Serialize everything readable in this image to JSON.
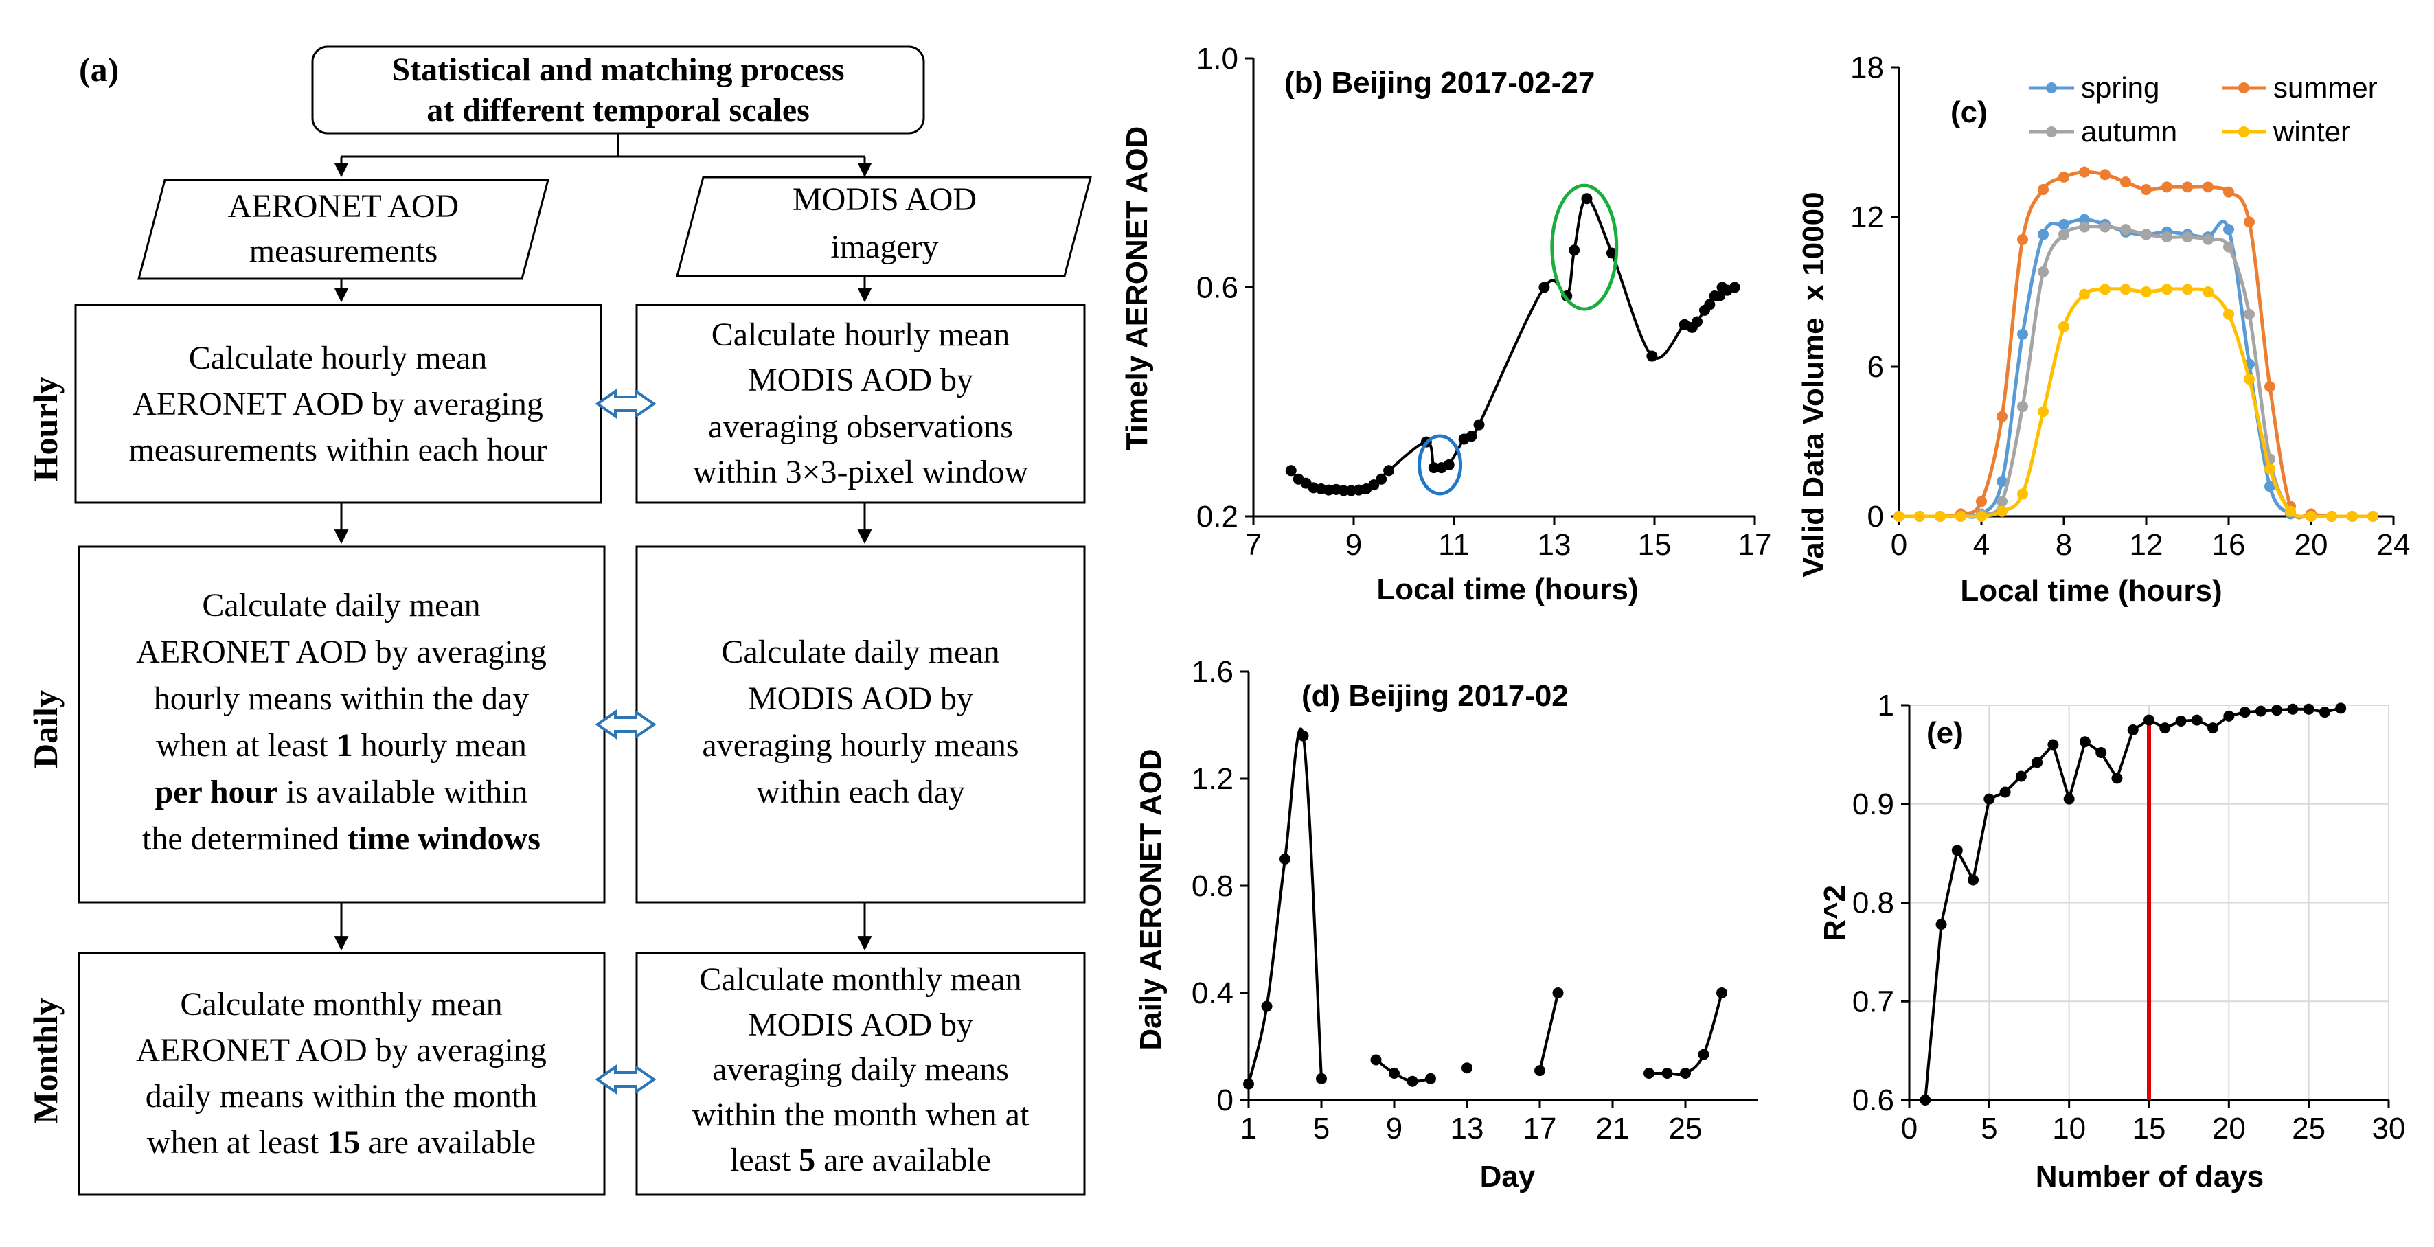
{
  "colors": {
    "black": "#000000",
    "spring": "#5B9BD5",
    "summer": "#ED7D31",
    "autumn": "#A5A5A5",
    "winter": "#FFC000",
    "ring_blue": "#1F78C8",
    "ring_green": "#1AAE3F",
    "marker_red": "#E00000",
    "arrow_blue": "#2E75B6",
    "grid": "#D9D9D9"
  },
  "flowchart": {
    "panel_label": "(a)",
    "top_box": {
      "line1": "Statistical and matching process",
      "line2": "at different temporal scales"
    },
    "left_input": {
      "line1": "AERONET AOD",
      "line2": "measurements"
    },
    "right_input": {
      "line1": "MODIS AOD",
      "line2": "imagery"
    },
    "row_labels": {
      "hourly": "Hourly",
      "daily": "Daily",
      "monthly": "Monthly"
    },
    "hourly_left": [
      "Calculate hourly mean",
      "AERONET AOD by averaging",
      "measurements within each hour"
    ],
    "hourly_right": [
      "Calculate hourly mean",
      "MODIS AOD by",
      "averaging observations",
      "within 3×3-pixel window"
    ],
    "daily_left": {
      "l1": "Calculate daily mean",
      "l2": "AERONET AOD by averaging",
      "l3": "hourly means within the day",
      "l4a": "when at least ",
      "l4b": "1",
      "l4c": " hourly mean",
      "l5a": "per hour",
      "l5b": " is available within",
      "l6a": "the determined ",
      "l6b": "time windows"
    },
    "daily_right": [
      "Calculate daily mean",
      "MODIS AOD by",
      "averaging hourly means",
      "within each day"
    ],
    "monthly_left": {
      "l1": "Calculate monthly mean",
      "l2": "AERONET AOD by averaging",
      "l3": "daily means within the month",
      "l4a": "when at least ",
      "l4b": "15",
      "l4c": " are available"
    },
    "monthly_right": {
      "l1": "Calculate monthly mean",
      "l2": "MODIS AOD by",
      "l3": "averaging daily means",
      "l4": "within the month when at",
      "l5a": "least ",
      "l5b": "5",
      "l5c": " are available"
    }
  },
  "chart_data": [
    {
      "id": "b",
      "type": "line",
      "title": "(b) Beijing  2017-02-27",
      "xlabel": "Local time (hours)",
      "ylabel": "Timely AERONET AOD",
      "xlim": [
        7,
        17
      ],
      "ylim": [
        0.2,
        1.0
      ],
      "xticks": [
        7,
        9,
        11,
        13,
        15,
        17
      ],
      "yticks": [
        0.2,
        0.6,
        1.0
      ],
      "ytick_labels": [
        "0.2",
        "0.6",
        "1.0"
      ],
      "grid": false,
      "x": [
        7.75,
        7.9,
        8.05,
        8.2,
        8.35,
        8.5,
        8.65,
        8.8,
        8.95,
        9.1,
        9.25,
        9.4,
        9.55,
        9.7,
        10.45,
        10.6,
        10.75,
        10.9,
        11.2,
        11.35,
        11.5,
        12.8,
        13.25,
        13.4,
        13.65,
        14.15,
        14.95,
        15.6,
        15.75,
        15.85,
        16.0,
        16.1,
        16.2,
        16.3,
        16.35,
        16.45,
        16.6
      ],
      "values": [
        0.28,
        0.265,
        0.258,
        0.25,
        0.248,
        0.246,
        0.247,
        0.245,
        0.245,
        0.246,
        0.248,
        0.255,
        0.265,
        0.28,
        0.33,
        0.285,
        0.285,
        0.29,
        0.335,
        0.34,
        0.36,
        0.6,
        0.585,
        0.665,
        0.755,
        0.66,
        0.48,
        0.535,
        0.53,
        0.54,
        0.56,
        0.57,
        0.585,
        0.585,
        0.6,
        0.595,
        0.6
      ],
      "annotations": [
        "blue ellipse near 10.7h",
        "green ellipse near 13.6h"
      ]
    },
    {
      "id": "c",
      "type": "line",
      "title": "(c)",
      "xlabel": "Local time (hours)",
      "ylabel": "Valid Data Volume",
      "ylabel_suffix": "x 10000",
      "xlim": [
        0,
        24
      ],
      "ylim": [
        0,
        18
      ],
      "xticks": [
        0,
        4,
        8,
        12,
        16,
        20,
        24
      ],
      "yticks": [
        0,
        6,
        12,
        18
      ],
      "grid": false,
      "legend": "top",
      "categories": [
        0,
        1,
        2,
        3,
        4,
        5,
        6,
        7,
        8,
        9,
        10,
        11,
        12,
        13,
        14,
        15,
        16,
        17,
        18,
        19,
        20,
        21,
        22,
        23
      ],
      "series": [
        {
          "name": "spring",
          "color_key": "spring",
          "values": [
            0,
            0,
            0,
            0,
            0.1,
            1.4,
            7.3,
            11.3,
            11.7,
            11.9,
            11.7,
            11.4,
            11.3,
            11.4,
            11.3,
            11.2,
            11.5,
            6.1,
            1.2,
            0.1,
            0,
            0,
            0,
            0
          ]
        },
        {
          "name": "summer",
          "color_key": "summer",
          "values": [
            0,
            0,
            0,
            0.1,
            0.6,
            4.0,
            11.1,
            13.1,
            13.6,
            13.8,
            13.7,
            13.4,
            13.1,
            13.2,
            13.2,
            13.2,
            13.0,
            11.8,
            5.2,
            0.4,
            0.1,
            0,
            0,
            0
          ]
        },
        {
          "name": "autumn",
          "color_key": "autumn",
          "values": [
            0,
            0,
            0,
            0,
            0.1,
            0.6,
            4.4,
            9.8,
            11.3,
            11.6,
            11.6,
            11.5,
            11.3,
            11.2,
            11.2,
            11.1,
            10.8,
            8.1,
            2.3,
            0.2,
            0,
            0,
            0,
            0
          ]
        },
        {
          "name": "winter",
          "color_key": "winter",
          "values": [
            0,
            0,
            0,
            0,
            0,
            0.2,
            0.9,
            4.2,
            7.6,
            8.9,
            9.1,
            9.1,
            9.0,
            9.1,
            9.1,
            9.0,
            8.1,
            5.5,
            1.9,
            0.2,
            0,
            0,
            0,
            0
          ]
        }
      ]
    },
    {
      "id": "d",
      "type": "line",
      "title": "(d) Beijing  2017-02",
      "xlabel": "Day",
      "ylabel": "Daily AERONET AOD",
      "xlim": [
        1,
        29
      ],
      "ylim": [
        0,
        1.6
      ],
      "xticks": [
        1,
        5,
        9,
        13,
        17,
        21,
        25
      ],
      "yticks": [
        0,
        0.4,
        0.8,
        1.2,
        1.6
      ],
      "ytick_labels": [
        "0",
        "0.4",
        "0.8",
        "1.2",
        "1.6"
      ],
      "grid": false,
      "segments": [
        {
          "x": [
            1,
            2,
            3,
            4,
            5
          ],
          "values": [
            0.06,
            0.35,
            0.9,
            1.36,
            0.08
          ]
        },
        {
          "x": [
            8,
            9,
            10,
            11
          ],
          "values": [
            0.15,
            0.1,
            0.07,
            0.08
          ]
        },
        {
          "x": [
            13
          ],
          "values": [
            0.12
          ]
        },
        {
          "x": [
            17,
            18
          ],
          "values": [
            0.11,
            0.4
          ]
        },
        {
          "x": [
            23,
            24,
            25,
            26,
            27
          ],
          "values": [
            0.1,
            0.1,
            0.1,
            0.17,
            0.4
          ]
        }
      ]
    },
    {
      "id": "e",
      "type": "line",
      "title": "(e)",
      "xlabel": "Number of days",
      "ylabel": "R^2",
      "xlim": [
        0,
        30
      ],
      "ylim": [
        0.6,
        1.0
      ],
      "xticks": [
        0,
        5,
        10,
        15,
        20,
        25,
        30
      ],
      "yticks": [
        0.6,
        0.7,
        0.8,
        0.9,
        1.0
      ],
      "ytick_labels": [
        "0.6",
        "0.7",
        "0.8",
        "0.9",
        "1"
      ],
      "grid": true,
      "vline_x": 15,
      "x": [
        1,
        2,
        3,
        4,
        5,
        6,
        7,
        8,
        9,
        10,
        11,
        12,
        13,
        14,
        15,
        16,
        17,
        18,
        19,
        20,
        21,
        22,
        23,
        24,
        25,
        26,
        27
      ],
      "values": [
        0.6,
        0.778,
        0.853,
        0.823,
        0.905,
        0.912,
        0.928,
        0.942,
        0.96,
        0.905,
        0.963,
        0.952,
        0.926,
        0.975,
        0.985,
        0.977,
        0.984,
        0.985,
        0.977,
        0.989,
        0.993,
        0.994,
        0.995,
        0.996,
        0.996,
        0.993,
        0.997
      ]
    }
  ]
}
